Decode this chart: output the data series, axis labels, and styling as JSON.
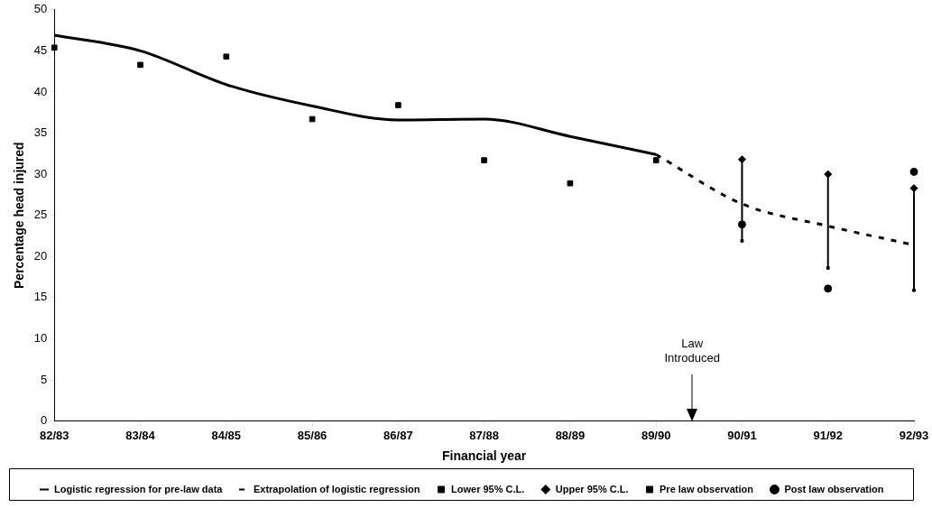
{
  "chart_data": {
    "type": "line",
    "xlabel": "Financial year",
    "ylabel": "Percentage head injured",
    "categories": [
      "82/83",
      "83/84",
      "84/85",
      "85/86",
      "86/87",
      "87/88",
      "88/89",
      "89/90",
      "90/91",
      "91/92",
      "92/93"
    ],
    "ylim": [
      0,
      50
    ],
    "yticks": [
      0,
      5,
      10,
      15,
      20,
      25,
      30,
      35,
      40,
      45,
      50
    ],
    "grid": false,
    "legend": "bottom",
    "series": [
      {
        "name": "Logistic regression for pre-law data",
        "type": "line",
        "color": "#000000",
        "line_style": "solid",
        "marker": "none",
        "values": [
          46.9,
          45.0,
          40.9,
          38.3,
          36.6,
          36.7,
          34.6,
          32.4,
          null,
          null,
          null
        ]
      },
      {
        "name": "Extrapolation of logistic regression",
        "type": "line",
        "color": "#000000",
        "line_style": "dashed",
        "marker": "none",
        "values": [
          null,
          null,
          null,
          null,
          null,
          null,
          null,
          32.4,
          26.4,
          23.7,
          21.4
        ]
      },
      {
        "name": "Lower 95% C.L.",
        "type": "scatter",
        "color": "#000000",
        "marker": "square",
        "values": [
          null,
          null,
          null,
          null,
          null,
          null,
          null,
          null,
          21.9,
          18.6,
          15.9
        ]
      },
      {
        "name": "Upper 95% C.L.",
        "type": "scatter",
        "color": "#000000",
        "marker": "diamond",
        "values": [
          null,
          null,
          null,
          null,
          null,
          null,
          null,
          null,
          31.8,
          30.0,
          28.3
        ]
      },
      {
        "name": "Pre law observation",
        "type": "scatter",
        "color": "#000000",
        "marker": "square",
        "values": [
          45.4,
          43.3,
          44.3,
          36.7,
          38.4,
          31.7,
          28.9,
          31.7,
          null,
          null,
          null
        ]
      },
      {
        "name": "Post law observation",
        "type": "scatter",
        "color": "#000000",
        "marker": "circle",
        "values": [
          null,
          null,
          null,
          null,
          null,
          null,
          null,
          null,
          23.9,
          16.1,
          30.3
        ]
      }
    ],
    "annotations": [
      "Law Introduced"
    ]
  }
}
